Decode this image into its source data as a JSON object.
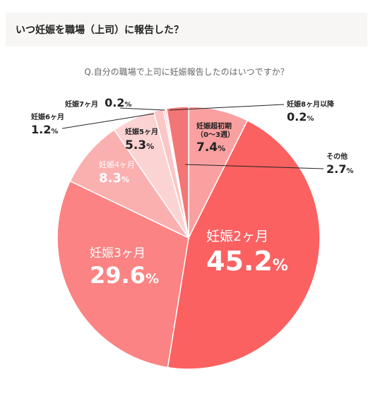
{
  "header": {
    "title": "いつ妊娠を職場（上司）に報告した？"
  },
  "question": "Q.自分の職場で上司に妊娠報告したのはいつですか？",
  "colors": {
    "slice_2m": "#fb6161",
    "slice_3m": "#fb8383",
    "slice_4m": "#fbb0b0",
    "slice_5m": "#fcd3d3",
    "slice_6m": "#fbc6c6",
    "slice_7m": "#f89a9a",
    "slice_8m": "#fbb5b5",
    "slice_other": "#f47575",
    "slice_early": "#fba0a0"
  },
  "chart_data": {
    "type": "pie",
    "title": "Q.自分の職場で上司に妊娠報告したのはいつですか？",
    "unit": "%",
    "slices": [
      {
        "name": "妊娠超初期（0〜3週）",
        "value": 7.4
      },
      {
        "name": "妊娠2ヶ月",
        "value": 45.2
      },
      {
        "name": "妊娠3ヶ月",
        "value": 29.6
      },
      {
        "name": "妊娠4ヶ月",
        "value": 8.3
      },
      {
        "name": "妊娠5ヶ月",
        "value": 5.3
      },
      {
        "name": "妊娠6ヶ月",
        "value": 1.2
      },
      {
        "name": "妊娠7ヶ月",
        "value": 0.2
      },
      {
        "name": "妊娠8ヶ月以降",
        "value": 0.2
      },
      {
        "name": "その他",
        "value": 2.7
      }
    ]
  },
  "labels": {
    "early_l1": "妊娠超初期",
    "early_l2": "（0〜3週）",
    "early_pct": "7.4",
    "m2_name": "妊娠2ヶ月",
    "m2_pct": "45.2",
    "m3_name": "妊娠3ヶ月",
    "m3_pct": "29.6",
    "m4_name": "妊娠4ヶ月",
    "m4_pct": "8.3",
    "m5_name": "妊娠5ヶ月",
    "m5_pct": "5.3",
    "m6_name": "妊娠6ヶ月",
    "m6_pct": "1.2",
    "m7_name": "妊娠7ヶ月",
    "m7_pct": "0.2",
    "m8_name": "妊娠8ヶ月以降",
    "m8_pct": "0.2",
    "other_name": "その他",
    "other_pct": "2.7",
    "pct_sign": "%"
  }
}
